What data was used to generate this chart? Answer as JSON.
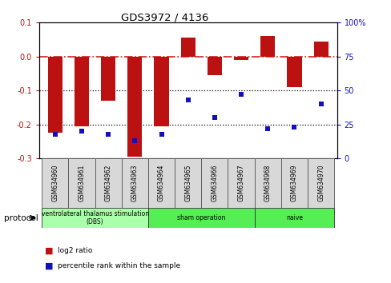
{
  "title": "GDS3972 / 4136",
  "samples": [
    "GSM634960",
    "GSM634961",
    "GSM634962",
    "GSM634963",
    "GSM634964",
    "GSM634965",
    "GSM634966",
    "GSM634967",
    "GSM634968",
    "GSM634969",
    "GSM634970"
  ],
  "log2_ratio": [
    -0.225,
    -0.205,
    -0.13,
    -0.295,
    -0.205,
    0.055,
    -0.055,
    -0.01,
    0.06,
    -0.09,
    0.045
  ],
  "pct_rank": [
    18,
    20,
    18,
    13,
    18,
    43,
    30,
    47,
    22,
    23,
    40
  ],
  "ylim_left": [
    -0.3,
    0.1
  ],
  "ylim_right": [
    0,
    100
  ],
  "bar_color": "#bb1111",
  "dot_color": "#1111bb",
  "dashed_line_color": "#cc2222",
  "dotted_line_color": "#000000",
  "group_starts": [
    0,
    4,
    8
  ],
  "group_ends": [
    4,
    8,
    11
  ],
  "group_labels": [
    "ventrolateral thalamus stimulation\n(DBS)",
    "sham operation",
    "naive"
  ],
  "group_colors": [
    "#aaffaa",
    "#55ee55",
    "#55ee55"
  ],
  "legend_log2": "log2 ratio",
  "legend_pct": "percentile rank within the sample",
  "xlabel_protocol": "protocol",
  "bg_color": "#ffffff",
  "plot_bg": "#ffffff",
  "grid_dotted_vals": [
    -0.1,
    -0.2
  ],
  "right_ticks": [
    0,
    25,
    50,
    75,
    100
  ],
  "left_ticks": [
    -0.3,
    -0.2,
    -0.1,
    0.0,
    0.1
  ],
  "right_tick_labels": [
    "0",
    "25",
    "50",
    "75",
    "100%"
  ]
}
